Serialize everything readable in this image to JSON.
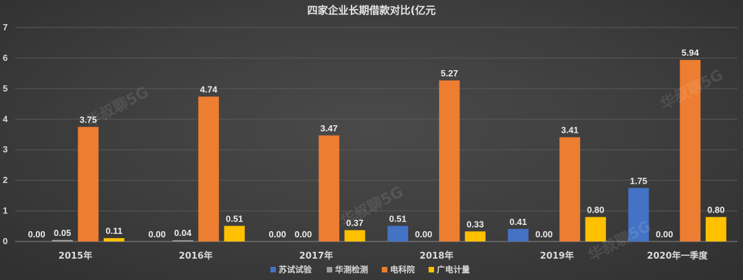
{
  "chart_data": {
    "type": "bar",
    "title": "四家企业长期借款对比(亿元",
    "categories": [
      "2015年",
      "2016年",
      "2017年",
      "2018年",
      "2019年",
      "2020年一季度"
    ],
    "series": [
      {
        "name": "苏试试验",
        "values": [
          0.0,
          0.0,
          0.0,
          0.51,
          0.41,
          1.75
        ],
        "color": "#4472c4"
      },
      {
        "name": "华测检测",
        "values": [
          0.05,
          0.04,
          0.0,
          0.0,
          0.0,
          0.0
        ],
        "color": "#9e9e9e"
      },
      {
        "name": "电科院",
        "values": [
          3.75,
          4.74,
          3.47,
          5.27,
          3.41,
          5.94
        ],
        "color": "#ed7d31"
      },
      {
        "name": "广电计量",
        "values": [
          0.11,
          0.51,
          0.37,
          0.33,
          0.8,
          0.8
        ],
        "color": "#ffc000"
      }
    ],
    "ylim": [
      0,
      7
    ],
    "yticks": [
      "0",
      "1",
      "2",
      "3",
      "4",
      "5",
      "6",
      "7"
    ],
    "grid": true,
    "legend": "bottom-center"
  },
  "watermark_text": "华叔聊5G"
}
